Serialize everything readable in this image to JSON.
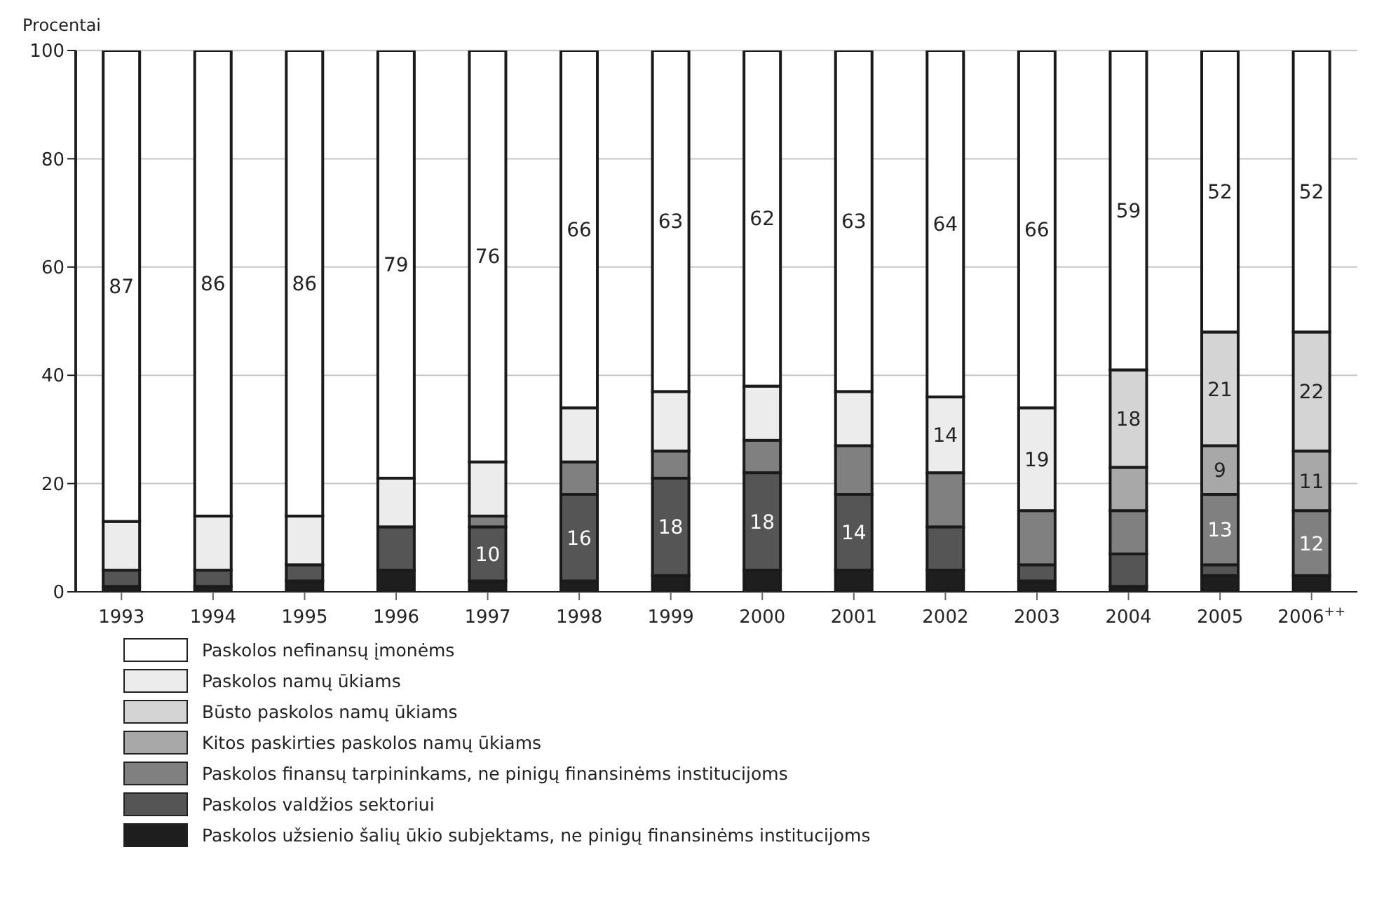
{
  "chart_data": {
    "type": "bar",
    "stacked": true,
    "ylabel": "Procentai",
    "categories": [
      "1993",
      "1994",
      "1995",
      "1996",
      "1997",
      "1998",
      "1999",
      "2000",
      "2001",
      "2002",
      "2003",
      "2004",
      "2005",
      "2006$^{++}$"
    ],
    "ylim": [
      0,
      100
    ],
    "yticks": [
      0,
      20,
      40,
      60,
      80,
      100
    ],
    "grid": "y",
    "legend": "bottom",
    "series": [
      {
        "name": "Paskolos užsienio šalių ūkio subjektams, ne pinigų finansinėms institucijoms",
        "color": "#1e1e1e",
        "values": [
          1,
          1,
          2,
          4,
          2,
          2,
          3,
          4,
          4,
          4,
          2,
          1,
          3,
          3
        ],
        "value_labels": [
          null,
          null,
          null,
          null,
          null,
          null,
          null,
          null,
          null,
          null,
          null,
          null,
          null,
          null
        ]
      },
      {
        "name": "Paskolos valdžios sektoriui",
        "color": "#555555",
        "values": [
          3,
          3,
          3,
          8,
          10,
          16,
          18,
          18,
          14,
          8,
          3,
          6,
          2,
          0
        ],
        "value_labels": [
          null,
          null,
          null,
          null,
          "10",
          "16",
          "18",
          "18",
          "14",
          null,
          null,
          null,
          null,
          null
        ]
      },
      {
        "name": "Paskolos finansų tarpininkams, ne pinigų finansinėms institucijoms",
        "color": "#808080",
        "values": [
          0,
          0,
          0,
          0,
          2,
          6,
          5,
          6,
          9,
          10,
          10,
          8,
          13,
          12
        ],
        "value_labels": [
          null,
          null,
          null,
          null,
          null,
          null,
          null,
          null,
          null,
          null,
          null,
          null,
          "13",
          "12"
        ]
      },
      {
        "name": "Kitos paskirties paskolos namų ūkiams",
        "color": "#a8a8a8",
        "values": [
          0,
          0,
          0,
          0,
          0,
          0,
          0,
          0,
          0,
          0,
          0,
          8,
          9,
          11
        ],
        "value_labels": [
          null,
          null,
          null,
          null,
          null,
          null,
          null,
          null,
          null,
          null,
          null,
          null,
          "9",
          "11"
        ]
      },
      {
        "name": "Būsto paskolos namų ūkiams",
        "color": "#d4d4d4",
        "values": [
          0,
          0,
          0,
          0,
          0,
          0,
          0,
          0,
          0,
          0,
          0,
          18,
          21,
          22
        ],
        "value_labels": [
          null,
          null,
          null,
          null,
          null,
          null,
          null,
          null,
          null,
          null,
          null,
          "18",
          "21",
          "22"
        ]
      },
      {
        "name": "Paskolos namų ūkiams",
        "color": "#ececec",
        "values": [
          9,
          10,
          9,
          9,
          10,
          10,
          11,
          10,
          10,
          14,
          19,
          0,
          0,
          0
        ],
        "value_labels": [
          null,
          null,
          null,
          null,
          null,
          null,
          null,
          null,
          null,
          "14",
          "19",
          null,
          null,
          null
        ]
      },
      {
        "name": "Paskolos nefinansų įmonėms",
        "color": "#ffffff",
        "values": [
          87,
          86,
          86,
          79,
          76,
          66,
          63,
          62,
          63,
          64,
          66,
          59,
          52,
          52
        ],
        "value_labels": [
          "87",
          "86",
          "86",
          "79",
          "76",
          "66",
          "63",
          "62",
          "63",
          "64",
          "66",
          "59",
          "52",
          "52"
        ]
      }
    ]
  }
}
